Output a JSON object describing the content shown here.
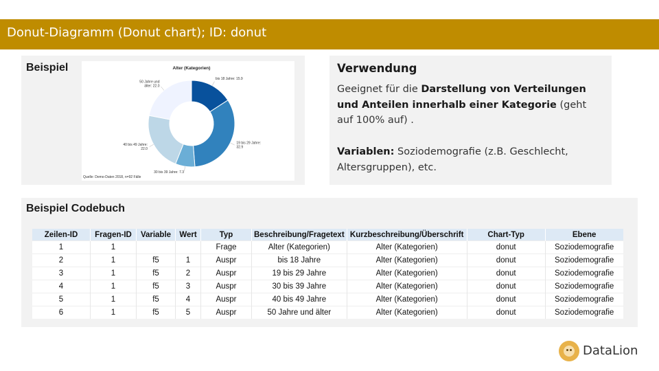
{
  "header": {
    "title": "Donut-Diagramm (Donut chart); ID: donut"
  },
  "example": {
    "heading": "Beispiel"
  },
  "usage": {
    "heading": "Verwendung",
    "text_prefix": "Geeignet für die ",
    "text_bold": "Darstellung von Verteilungen und Anteilen innerhalb einer Kategorie",
    "text_suffix": " (geht auf 100% auf) .",
    "vars_label": "Variablen:",
    "vars_text": " Soziodemografie (z.B. Geschlecht, Altersgruppen),  etc."
  },
  "codebook": {
    "heading": "Beispiel Codebuch",
    "columns": [
      "Zeilen-ID",
      "Fragen-ID",
      "Variable",
      "Wert",
      "Typ",
      "Beschreibung/Fragetext",
      "Kurzbeschreibung/Überschrift",
      "Chart-Typ",
      "Ebene"
    ],
    "rows": [
      [
        "1",
        "1",
        "",
        "",
        "Frage",
        "Alter (Kategorien)",
        "Alter (Kategorien)",
        "donut",
        "Soziodemografie"
      ],
      [
        "2",
        "1",
        "f5",
        "1",
        "Auspr",
        "bis 18 Jahre",
        "Alter (Kategorien)",
        "donut",
        "Soziodemografie"
      ],
      [
        "3",
        "1",
        "f5",
        "2",
        "Auspr",
        "19 bis 29 Jahre",
        "Alter (Kategorien)",
        "donut",
        "Soziodemografie"
      ],
      [
        "4",
        "1",
        "f5",
        "3",
        "Auspr",
        "30 bis 39 Jahre",
        "Alter (Kategorien)",
        "donut",
        "Soziodemografie"
      ],
      [
        "5",
        "1",
        "f5",
        "4",
        "Auspr",
        "40 bis 49 Jahre",
        "Alter (Kategorien)",
        "donut",
        "Soziodemografie"
      ],
      [
        "6",
        "1",
        "f5",
        "5",
        "Auspr",
        "50 Jahre und älter",
        "Alter (Kategorien)",
        "donut",
        "Soziodemografie"
      ]
    ]
  },
  "logo": {
    "text": "DataLion",
    "icon": "lion-icon"
  },
  "chart_data": {
    "type": "pie",
    "title": "Alter (Kategorien)",
    "categories": [
      "bis 18 Jahre",
      "19 bis 29 Jahre",
      "30 bis 39 Jahre",
      "40 bis 49 Jahre",
      "50 Jahre und älter"
    ],
    "values": [
      15.9,
      32.9,
      7.3,
      22.0,
      22.0
    ],
    "slice_labels": [
      [
        "bis 18 Jahre: 15.9"
      ],
      [
        "19 bis 29 Jahre:",
        "32.9"
      ],
      [
        "30 bis 39 Jahre: 7.3"
      ],
      [
        "40 bis 49 Jahre:",
        "22.0"
      ],
      [
        "50 Jahre und",
        "älter: 22.0"
      ]
    ],
    "colors": [
      "#08519c",
      "#3182bd",
      "#6baed6",
      "#bdd7e7",
      "#eff3ff"
    ],
    "source": "Quelle: Demo-Daten 2018, n=92 Fälle",
    "donut": true
  }
}
